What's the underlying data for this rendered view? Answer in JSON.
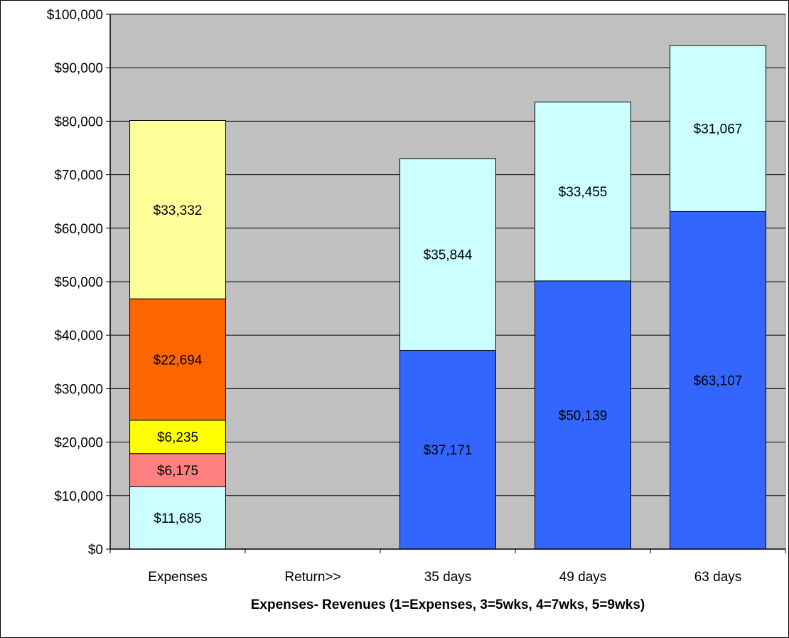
{
  "chart_data": {
    "type": "bar",
    "stacked": true,
    "title": "",
    "xlabel": "Expenses- Revenues (1=Expenses, 3=5wks, 4=7wks, 5=9wks)",
    "ylabel": "",
    "ylim": [
      0,
      100000
    ],
    "yticks": [
      0,
      10000,
      20000,
      30000,
      40000,
      50000,
      60000,
      70000,
      80000,
      90000,
      100000
    ],
    "ytick_labels": [
      "$0",
      "$10,000",
      "$20,000",
      "$30,000",
      "$40,000",
      "$50,000",
      "$60,000",
      "$70,000",
      "$80,000",
      "$90,000",
      "$100,000"
    ],
    "categories": [
      "Expenses",
      "Return>>",
      "35 days",
      "49 days",
      "63 days"
    ],
    "grid": true,
    "plot_background": "#C0C0C0",
    "series": [
      {
        "color": "#CCFFFF",
        "values": [
          11685,
          0,
          0,
          0,
          0
        ],
        "labels": [
          "$11,685",
          "",
          "",
          "",
          ""
        ]
      },
      {
        "color": "#FF8080",
        "values": [
          6175,
          0,
          0,
          0,
          0
        ],
        "labels": [
          "$6,175",
          "",
          "",
          "",
          ""
        ]
      },
      {
        "color": "#FFFF00",
        "values": [
          6235,
          0,
          0,
          0,
          0
        ],
        "labels": [
          "$6,235",
          "",
          "",
          "",
          ""
        ]
      },
      {
        "color": "#FF6600",
        "values": [
          22694,
          0,
          0,
          0,
          0
        ],
        "labels": [
          "$22,694",
          "",
          "",
          "",
          ""
        ]
      },
      {
        "color": "#FFFF99",
        "values": [
          33332,
          0,
          0,
          0,
          0
        ],
        "labels": [
          "$33,332",
          "",
          "",
          "",
          ""
        ]
      },
      {
        "color": "#3366FF",
        "values": [
          0,
          0,
          37171,
          50139,
          63107
        ],
        "labels": [
          "",
          "",
          "$37,171",
          "$50,139",
          "$63,107"
        ]
      },
      {
        "color": "#CCFFFF",
        "values": [
          0,
          0,
          35844,
          33455,
          31067
        ],
        "labels": [
          "",
          "",
          "$35,844",
          "$33,455",
          "$31,067"
        ]
      }
    ]
  }
}
